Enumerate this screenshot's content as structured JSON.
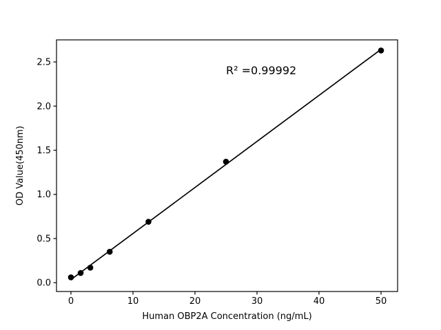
{
  "chart_data": {
    "type": "scatter",
    "title": "",
    "xlabel": "Human OBP2A Concentration (ng/mL)",
    "ylabel": "OD Value(450nm)",
    "x": [
      0,
      1.5625,
      3.125,
      6.25,
      12.5,
      25,
      50
    ],
    "y": [
      0.06,
      0.11,
      0.17,
      0.35,
      0.69,
      1.37,
      2.63
    ],
    "xlim": [
      -2.33,
      52.67
    ],
    "ylim": [
      -0.1,
      2.75
    ],
    "xticks": {
      "values": [
        0,
        10,
        20,
        30,
        40,
        50
      ],
      "labels": [
        "0",
        "10",
        "20",
        "30",
        "40",
        "50"
      ]
    },
    "yticks": {
      "values": [
        0,
        0.5,
        1,
        1.5,
        2,
        2.5
      ],
      "labels": [
        "0.0",
        "0.5",
        "1.0",
        "1.5",
        "2.0",
        "2.5"
      ]
    },
    "fit": {
      "type": "linear",
      "r_squared": 0.99992
    },
    "annotation": {
      "text": "R² =0.99992"
    },
    "grid": false,
    "legend": "none",
    "marker_color": "#000000",
    "line_color": "#000000",
    "axis_color": "#000000",
    "background": "#ffffff"
  }
}
